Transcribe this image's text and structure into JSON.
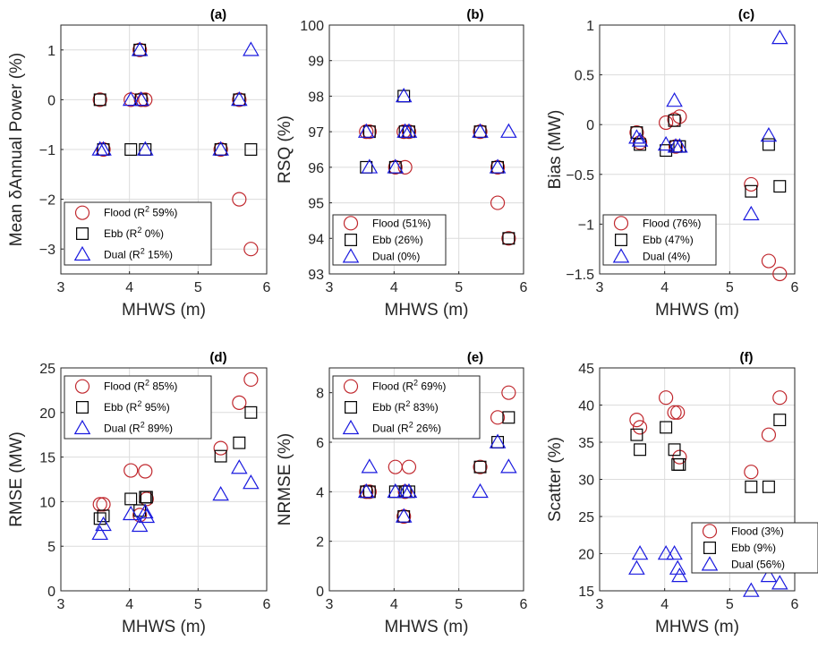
{
  "colors": {
    "flood": "#c0272d",
    "ebb": "#000000",
    "dual": "#1a1adf",
    "grid": "#dcdcdc",
    "axis": "#262626"
  },
  "chart_data": [
    {
      "type": "scatter",
      "panel_label": "(a)",
      "xlabel": "MHWS (m)",
      "ylabel": "Mean δAnnual Power (%)",
      "xlim": [
        3,
        6
      ],
      "ylim": [
        -3.5,
        1.5
      ],
      "xticks": [
        3,
        4,
        5,
        6
      ],
      "yticks": [
        -3,
        -2,
        -1,
        0,
        1
      ],
      "grid": true,
      "legend_position": "bottom-left",
      "series": [
        {
          "name": "Flood (R",
          "sup": "2",
          "name_suffix": " 59%)",
          "marker": "circle",
          "points": [
            [
              3.57,
              0
            ],
            [
              3.62,
              -1
            ],
            [
              4.02,
              0
            ],
            [
              4.15,
              1
            ],
            [
              4.17,
              0
            ],
            [
              4.23,
              0
            ],
            [
              5.33,
              -1
            ],
            [
              5.6,
              0
            ],
            [
              5.6,
              -2
            ],
            [
              5.77,
              -3
            ]
          ]
        },
        {
          "name": "Ebb (R",
          "sup": "2",
          "name_suffix": " 0%)",
          "marker": "square",
          "points": [
            [
              3.57,
              0
            ],
            [
              3.62,
              -1
            ],
            [
              4.02,
              -1
            ],
            [
              4.15,
              1
            ],
            [
              4.17,
              0
            ],
            [
              4.23,
              -1
            ],
            [
              5.33,
              -1
            ],
            [
              5.6,
              0
            ],
            [
              5.77,
              -1
            ]
          ]
        },
        {
          "name": "Dual (R",
          "sup": "2",
          "name_suffix": " 15%)",
          "marker": "triangle",
          "points": [
            [
              3.57,
              -1
            ],
            [
              3.62,
              -1
            ],
            [
              4.02,
              0
            ],
            [
              4.15,
              1
            ],
            [
              4.17,
              0
            ],
            [
              4.23,
              -1
            ],
            [
              5.33,
              -1
            ],
            [
              5.6,
              0
            ],
            [
              5.77,
              1
            ]
          ]
        }
      ]
    },
    {
      "type": "scatter",
      "panel_label": "(b)",
      "xlabel": "MHWS (m)",
      "ylabel": "RSQ (%)",
      "xlim": [
        3,
        6
      ],
      "ylim": [
        93,
        100
      ],
      "xticks": [
        3,
        4,
        5,
        6
      ],
      "yticks": [
        93,
        94,
        95,
        96,
        97,
        98,
        99,
        100
      ],
      "grid": true,
      "legend_position": "bottom-left",
      "series": [
        {
          "name": "Flood (51%)",
          "marker": "circle",
          "points": [
            [
              3.57,
              97
            ],
            [
              3.62,
              97
            ],
            [
              4.02,
              96
            ],
            [
              4.15,
              97
            ],
            [
              4.17,
              96
            ],
            [
              4.23,
              97
            ],
            [
              5.33,
              97
            ],
            [
              5.6,
              95
            ],
            [
              5.6,
              96
            ],
            [
              5.77,
              94
            ]
          ]
        },
        {
          "name": "Ebb (26%)",
          "marker": "square",
          "points": [
            [
              3.57,
              96
            ],
            [
              3.62,
              97
            ],
            [
              4.02,
              96
            ],
            [
              4.15,
              98
            ],
            [
              4.17,
              97
            ],
            [
              4.23,
              97
            ],
            [
              5.33,
              97
            ],
            [
              5.6,
              96
            ],
            [
              5.77,
              94
            ]
          ]
        },
        {
          "name": "Dual (0%)",
          "marker": "triangle",
          "points": [
            [
              3.57,
              97
            ],
            [
              3.62,
              96
            ],
            [
              4.02,
              96
            ],
            [
              4.15,
              98
            ],
            [
              4.17,
              97
            ],
            [
              4.23,
              97
            ],
            [
              5.33,
              97
            ],
            [
              5.6,
              96
            ],
            [
              5.77,
              97
            ]
          ]
        }
      ]
    },
    {
      "type": "scatter",
      "panel_label": "(c)",
      "xlabel": "MHWS (m)",
      "ylabel": "Bias (MW)",
      "xlim": [
        3,
        6
      ],
      "ylim": [
        -1.5,
        1
      ],
      "xticks": [
        3,
        4,
        5,
        6
      ],
      "yticks": [
        -1.5,
        -1,
        -0.5,
        0,
        0.5,
        1
      ],
      "grid": true,
      "legend_position": "bottom-left",
      "series": [
        {
          "name": "Flood (76%)",
          "marker": "circle",
          "points": [
            [
              3.57,
              -0.08
            ],
            [
              3.62,
              -0.18
            ],
            [
              4.02,
              0.02
            ],
            [
              4.15,
              0.05
            ],
            [
              4.17,
              -0.22
            ],
            [
              4.23,
              0.08
            ],
            [
              5.33,
              -0.6
            ],
            [
              5.6,
              -1.37
            ],
            [
              5.77,
              -1.5
            ]
          ]
        },
        {
          "name": "Ebb (47%)",
          "marker": "square",
          "points": [
            [
              3.57,
              -0.08
            ],
            [
              3.62,
              -0.2
            ],
            [
              4.02,
              -0.26
            ],
            [
              4.15,
              0.04
            ],
            [
              4.17,
              -0.22
            ],
            [
              4.23,
              -0.22
            ],
            [
              5.33,
              -0.67
            ],
            [
              5.6,
              -0.2
            ],
            [
              5.77,
              -0.62
            ]
          ]
        },
        {
          "name": "Dual (4%)",
          "marker": "triangle",
          "points": [
            [
              3.57,
              -0.13
            ],
            [
              3.62,
              -0.16
            ],
            [
              4.02,
              -0.2
            ],
            [
              4.15,
              0.24
            ],
            [
              4.17,
              -0.22
            ],
            [
              4.23,
              -0.22
            ],
            [
              5.33,
              -0.9
            ],
            [
              5.6,
              -0.11
            ],
            [
              5.77,
              0.87
            ]
          ]
        }
      ]
    },
    {
      "type": "scatter",
      "panel_label": "(d)",
      "xlabel": "MHWS (m)",
      "ylabel": "RMSE (MW)",
      "xlim": [
        3,
        6
      ],
      "ylim": [
        0,
        25
      ],
      "xticks": [
        3,
        4,
        5,
        6
      ],
      "yticks": [
        0,
        5,
        10,
        15,
        20,
        25
      ],
      "grid": true,
      "legend_position": "top-left",
      "series": [
        {
          "name": "Flood (R",
          "sup": "2",
          "name_suffix": " 85%)",
          "marker": "circle",
          "points": [
            [
              3.57,
              9.7
            ],
            [
              3.62,
              9.7
            ],
            [
              4.02,
              13.5
            ],
            [
              4.15,
              8.5
            ],
            [
              4.23,
              13.4
            ],
            [
              4.25,
              10.3
            ],
            [
              5.33,
              16
            ],
            [
              5.6,
              21.1
            ],
            [
              5.77,
              23.7
            ]
          ]
        },
        {
          "name": "Ebb (R",
          "sup": "2",
          "name_suffix": " 95%)",
          "marker": "square",
          "points": [
            [
              3.57,
              8.1
            ],
            [
              3.62,
              8.4
            ],
            [
              4.02,
              10.3
            ],
            [
              4.15,
              9
            ],
            [
              4.23,
              10.5
            ],
            [
              4.25,
              10.5
            ],
            [
              5.33,
              15.1
            ],
            [
              5.6,
              16.6
            ],
            [
              5.77,
              20
            ]
          ]
        },
        {
          "name": "Dual (R",
          "sup": "2",
          "name_suffix": " 89%)",
          "marker": "triangle",
          "points": [
            [
              3.57,
              6.4
            ],
            [
              3.62,
              7.4
            ],
            [
              4.02,
              8.6
            ],
            [
              4.15,
              7.3
            ],
            [
              4.23,
              8.8
            ],
            [
              4.25,
              8.3
            ],
            [
              5.33,
              10.8
            ],
            [
              5.6,
              13.8
            ],
            [
              5.77,
              12.1
            ]
          ]
        }
      ]
    },
    {
      "type": "scatter",
      "panel_label": "(e)",
      "xlabel": "MHWS (m)",
      "ylabel": "NRMSE (%)",
      "xlim": [
        3,
        6
      ],
      "ylim": [
        0,
        9
      ],
      "xticks": [
        3,
        4,
        5,
        6
      ],
      "yticks": [
        0,
        2,
        4,
        6,
        8
      ],
      "grid": true,
      "legend_position": "top-left",
      "series": [
        {
          "name": "Flood (R",
          "sup": "2",
          "name_suffix": " 69%)",
          "marker": "circle",
          "points": [
            [
              3.57,
              4
            ],
            [
              3.62,
              4
            ],
            [
              4.02,
              5
            ],
            [
              4.15,
              3
            ],
            [
              4.17,
              4
            ],
            [
              4.23,
              5
            ],
            [
              5.33,
              5
            ],
            [
              5.6,
              7
            ],
            [
              5.77,
              8
            ]
          ]
        },
        {
          "name": "Ebb (R",
          "sup": "2",
          "name_suffix": " 83%)",
          "marker": "square",
          "points": [
            [
              3.57,
              4
            ],
            [
              3.62,
              4
            ],
            [
              4.02,
              4
            ],
            [
              4.15,
              3
            ],
            [
              4.17,
              4
            ],
            [
              4.23,
              4
            ],
            [
              5.33,
              5
            ],
            [
              5.6,
              6
            ],
            [
              5.77,
              7
            ]
          ]
        },
        {
          "name": "Dual (R",
          "sup": "2",
          "name_suffix": " 26%)",
          "marker": "triangle",
          "points": [
            [
              3.57,
              4
            ],
            [
              3.62,
              5
            ],
            [
              4.02,
              4
            ],
            [
              4.15,
              3
            ],
            [
              4.17,
              4
            ],
            [
              4.23,
              4
            ],
            [
              5.33,
              4
            ],
            [
              5.6,
              6
            ],
            [
              5.77,
              5
            ]
          ]
        }
      ]
    },
    {
      "type": "scatter",
      "panel_label": "(f)",
      "xlabel": "MHWS (m)",
      "ylabel": "Scatter (%)",
      "xlim": [
        3,
        6
      ],
      "ylim": [
        15,
        45
      ],
      "xticks": [
        3,
        4,
        5,
        6
      ],
      "yticks": [
        15,
        20,
        25,
        30,
        35,
        40,
        45
      ],
      "grid": true,
      "legend_position": "bottom-right",
      "series": [
        {
          "name": "Flood (3%)",
          "marker": "circle",
          "points": [
            [
              3.57,
              38
            ],
            [
              3.62,
              37
            ],
            [
              4.02,
              41
            ],
            [
              4.15,
              39
            ],
            [
              4.2,
              39
            ],
            [
              4.23,
              33
            ],
            [
              5.33,
              31
            ],
            [
              5.6,
              36
            ],
            [
              5.77,
              41
            ]
          ]
        },
        {
          "name": "Ebb (9%)",
          "marker": "square",
          "points": [
            [
              3.57,
              36
            ],
            [
              3.62,
              34
            ],
            [
              4.02,
              37
            ],
            [
              4.15,
              34
            ],
            [
              4.2,
              32
            ],
            [
              4.23,
              32
            ],
            [
              5.33,
              29
            ],
            [
              5.6,
              29
            ],
            [
              5.77,
              38
            ]
          ]
        },
        {
          "name": "Dual (56%)",
          "marker": "triangle",
          "points": [
            [
              3.57,
              18
            ],
            [
              3.62,
              20
            ],
            [
              4.02,
              20
            ],
            [
              4.15,
              20
            ],
            [
              4.2,
              18
            ],
            [
              4.23,
              17
            ],
            [
              5.33,
              15
            ],
            [
              5.6,
              17
            ],
            [
              5.77,
              16
            ]
          ]
        }
      ]
    }
  ]
}
